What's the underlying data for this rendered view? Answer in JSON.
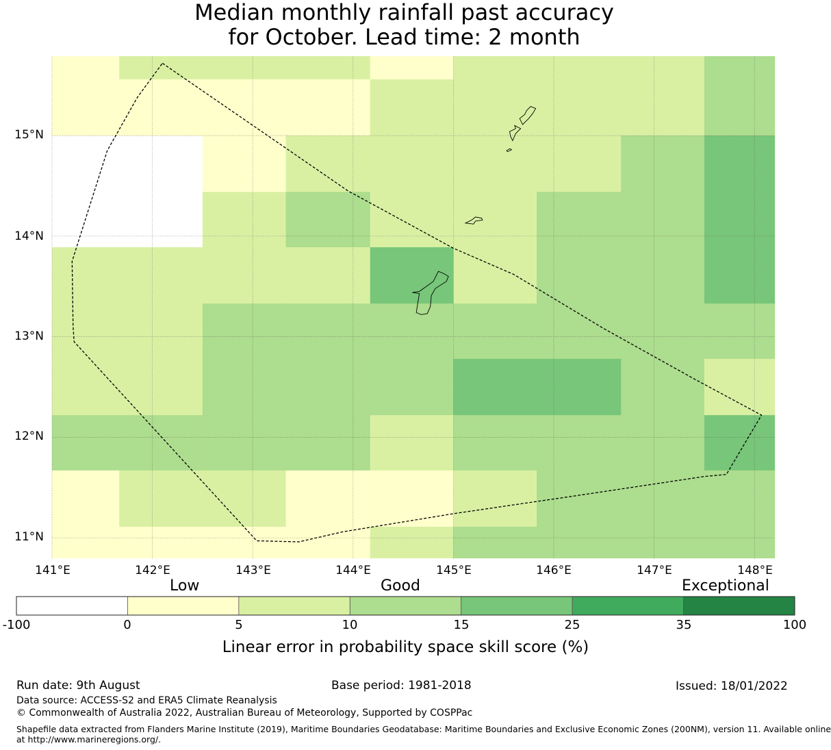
{
  "title": {
    "line1": "Median monthly rainfall past accuracy",
    "line2": "for October. Lead time: 2 month"
  },
  "map": {
    "lon_range": [
      141.0,
      148.2
    ],
    "lat_range": [
      10.8,
      15.8
    ],
    "lat_ticks": [
      "15°N",
      "14°N",
      "13°N",
      "12°N",
      "11°N"
    ],
    "lon_ticks": [
      "141°E",
      "142°E",
      "143°E",
      "144°E",
      "145°E",
      "146°E",
      "147°E",
      "148°E"
    ],
    "skill_grid": {
      "lon_edges": [
        141.0,
        141.67,
        142.5,
        143.33,
        144.17,
        145.0,
        145.83,
        146.67,
        147.5,
        148.2
      ],
      "lat_edges": [
        15.8,
        15.56,
        15.0,
        14.44,
        13.89,
        13.33,
        12.78,
        12.22,
        11.67,
        11.11,
        10.8
      ],
      "rows": [
        [
          1,
          2,
          2,
          2,
          1,
          2,
          2,
          2,
          3
        ],
        [
          1,
          1,
          1,
          1,
          2,
          2,
          2,
          2,
          3
        ],
        [
          0,
          0,
          1,
          2,
          2,
          2,
          2,
          3,
          4
        ],
        [
          0,
          0,
          2,
          3,
          2,
          2,
          3,
          3,
          4
        ],
        [
          2,
          2,
          2,
          2,
          4,
          2,
          3,
          3,
          4
        ],
        [
          2,
          2,
          3,
          3,
          3,
          3,
          3,
          3,
          3
        ],
        [
          2,
          2,
          3,
          3,
          3,
          4,
          4,
          3,
          2
        ],
        [
          3,
          3,
          3,
          3,
          2,
          3,
          3,
          3,
          4
        ],
        [
          1,
          2,
          2,
          1,
          1,
          2,
          3,
          3,
          3
        ],
        [
          1,
          1,
          1,
          1,
          2,
          3,
          3,
          3,
          3
        ]
      ]
    },
    "eez_boundary": [
      [
        142.1,
        15.72
      ],
      [
        143.95,
        14.45
      ],
      [
        145.0,
        13.88
      ],
      [
        145.6,
        13.62
      ],
      [
        146.5,
        13.08
      ],
      [
        147.4,
        12.58
      ],
      [
        148.07,
        12.22
      ],
      [
        147.72,
        11.63
      ],
      [
        147.5,
        11.61
      ],
      [
        146.3,
        11.43
      ],
      [
        145.0,
        11.24
      ],
      [
        143.9,
        11.06
      ],
      [
        143.46,
        10.96
      ],
      [
        143.04,
        10.97
      ],
      [
        141.22,
        12.95
      ],
      [
        141.21,
        13.1
      ],
      [
        141.2,
        13.75
      ],
      [
        141.55,
        14.85
      ],
      [
        141.85,
        15.38
      ]
    ],
    "islands": [
      [
        [
          144.63,
          13.24
        ],
        [
          144.66,
          13.43
        ],
        [
          144.59,
          13.44
        ],
        [
          144.66,
          13.45
        ],
        [
          144.8,
          13.55
        ],
        [
          144.85,
          13.65
        ],
        [
          144.9,
          13.63
        ],
        [
          144.95,
          13.6
        ],
        [
          144.93,
          13.55
        ],
        [
          144.82,
          13.48
        ],
        [
          144.78,
          13.41
        ],
        [
          144.77,
          13.3
        ],
        [
          144.74,
          13.23
        ],
        [
          144.68,
          13.22
        ]
      ],
      [
        [
          145.12,
          14.13
        ],
        [
          145.18,
          14.16
        ],
        [
          145.22,
          14.19
        ],
        [
          145.28,
          14.18
        ],
        [
          145.29,
          14.16
        ],
        [
          145.22,
          14.15
        ],
        [
          145.2,
          14.12
        ]
      ],
      [
        [
          145.59,
          14.95
        ],
        [
          145.62,
          15.02
        ],
        [
          145.67,
          15.07
        ],
        [
          145.61,
          15.1
        ],
        [
          145.62,
          15.07
        ],
        [
          145.56,
          15.04
        ],
        [
          145.57,
          14.99
        ]
      ],
      [
        [
          145.66,
          15.17
        ],
        [
          145.71,
          15.21
        ],
        [
          145.73,
          15.25
        ],
        [
          145.77,
          15.29
        ],
        [
          145.82,
          15.27
        ],
        [
          145.79,
          15.22
        ],
        [
          145.75,
          15.17
        ],
        [
          145.73,
          15.15
        ],
        [
          145.69,
          15.11
        ]
      ],
      [
        [
          145.53,
          14.85
        ],
        [
          145.56,
          14.87
        ],
        [
          145.58,
          14.86
        ],
        [
          145.54,
          14.84
        ]
      ]
    ]
  },
  "colorbar": {
    "categories": [
      "Low",
      "Good",
      "Exceptional"
    ],
    "ticks": [
      "-100",
      "0",
      "5",
      "10",
      "15",
      "25",
      "35",
      "100"
    ],
    "colors": [
      "#ffffff",
      "#ffffcc",
      "#d9f0a3",
      "#addd8e",
      "#78c679",
      "#41ab5d",
      "#238443"
    ],
    "label": "Linear error in probability space skill score (%)"
  },
  "footer": {
    "run_date": "Run date: 9th August",
    "base_period": "Base period: 1981-2018",
    "issued": "Issued: 18/01/2022",
    "data_source": "Data source: ACCESS-S2 and ERA5 Climate Reanalysis",
    "copyright": "© Commonwealth of Australia 2022, Australian Bureau of Meteorology, Supported by COSPPac",
    "shapefile_line1": "Shapefile data extracted from Flanders Marine Institute (2019), Maritime Boundaries Geodatabase: Maritime Boundaries and Exclusive Economic Zones (200NM), version 11. Available online",
    "shapefile_line2": "at http://www.marineregions.org/."
  }
}
